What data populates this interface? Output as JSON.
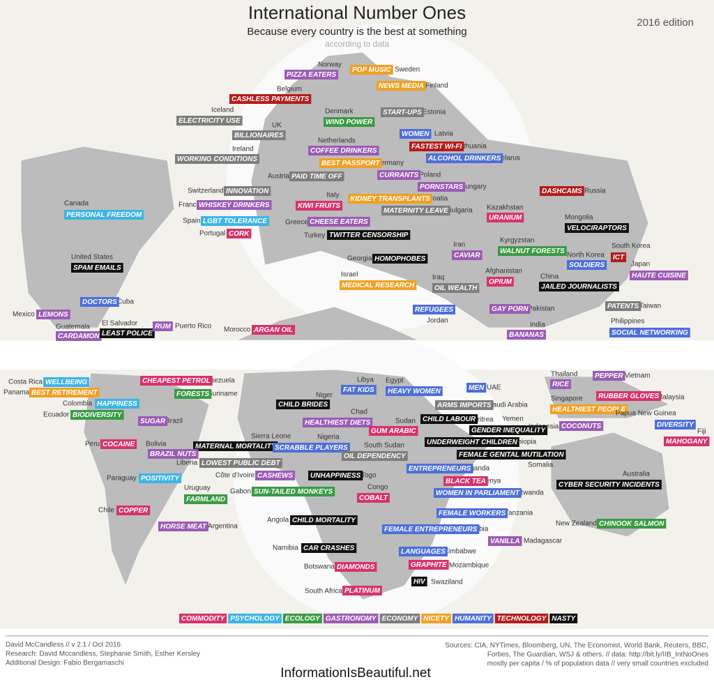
{
  "header": {
    "title": "International Number Ones",
    "subtitle": "Because every country is the best at something",
    "note": "according to data",
    "edition": "2016 edition"
  },
  "labels": [
    {
      "country": "Norway",
      "tag": "PIZZA EATERS",
      "category": "GASTRONOMY"
    },
    {
      "country": "Sweden",
      "tag": "POP MUSIC",
      "category": "NICETY"
    },
    {
      "country": "Finland",
      "tag": "NEWS MEDIA",
      "category": "NICETY"
    },
    {
      "country": "Belgium",
      "tag": "CASHLESS PAYMENTS",
      "category": "TECHNOLOGY"
    },
    {
      "country": "Iceland",
      "tag": "ELECTRICITY USE",
      "category": "ECONOMY"
    },
    {
      "country": "Denmark",
      "tag": "WIND POWER",
      "category": "ECOLOGY"
    },
    {
      "country": "Estonia",
      "tag": "START-UPS",
      "category": "ECONOMY"
    },
    {
      "country": "UK",
      "tag": "BILLIONAIRES",
      "category": "ECONOMY"
    },
    {
      "country": "Latvia",
      "tag": "WOMEN",
      "category": "HUMANITY"
    },
    {
      "country": "Netherlands",
      "tag": "COFFEE DRINKERS",
      "category": "GASTRONOMY"
    },
    {
      "country": "Lithuania",
      "tag": "FASTEST WI-FI",
      "category": "TECHNOLOGY"
    },
    {
      "country": "Ireland",
      "tag": "WORKING CONDITIONS",
      "category": "ECONOMY"
    },
    {
      "country": "Belarus",
      "tag": "ALCOHOL DRINKERS",
      "category": "HUMANITY"
    },
    {
      "country": "Germany",
      "tag": "BEST PASSPORT",
      "category": "NICETY"
    },
    {
      "country": "Austria",
      "tag": "PAID TIME OFF",
      "category": "ECONOMY"
    },
    {
      "country": "Poland",
      "tag": "CURRANTS",
      "category": "GASTRONOMY"
    },
    {
      "country": "Hungary",
      "tag": "PORNSTARS",
      "category": "GASTRONOMY"
    },
    {
      "country": "Switzerland",
      "tag": "INNOVATION",
      "category": "ECONOMY"
    },
    {
      "country": "Russia",
      "tag": "DASHCAMS",
      "category": "TECHNOLOGY"
    },
    {
      "country": "Croatia",
      "tag": "KIDNEY TRANSPLANTS",
      "category": "NICETY"
    },
    {
      "country": "Canada",
      "tag": "PERSONAL FREEDOM",
      "category": "PSYCHOLOGY"
    },
    {
      "country": "France",
      "tag": "WHISKEY DRINKERS",
      "category": "GASTRONOMY"
    },
    {
      "country": "Italy",
      "tag": "KIWI FRUITS",
      "category": "COMMODITY"
    },
    {
      "country": "Kazakhstan",
      "tag": "URANIUM",
      "category": "COMMODITY"
    },
    {
      "country": "Bulgaria",
      "tag": "MATERNITY LEAVE",
      "category": "ECONOMY"
    },
    {
      "country": "Spain",
      "tag": "LGBT TOLERANCE",
      "category": "PSYCHOLOGY"
    },
    {
      "country": "Greece",
      "tag": "CHEESE EATERS",
      "category": "GASTRONOMY"
    },
    {
      "country": "Mongolia",
      "tag": "VELOCIRAPTORS",
      "category": "NASTY"
    },
    {
      "country": "Portugal",
      "tag": "CORK",
      "category": "COMMODITY"
    },
    {
      "country": "Turkey",
      "tag": "TWITTER CENSORSHIP",
      "category": "NASTY"
    },
    {
      "country": "Iran",
      "tag": "CAVIAR",
      "category": "GASTRONOMY"
    },
    {
      "country": "Kyrgyzstan",
      "tag": "WALNUT FORESTS",
      "category": "ECOLOGY"
    },
    {
      "country": "South Korea",
      "tag": "ICT",
      "category": "TECHNOLOGY"
    },
    {
      "country": "North Korea",
      "tag": "SOLDIERS",
      "category": "HUMANITY"
    },
    {
      "country": "United States",
      "tag": "SPAM EMAILS",
      "category": "NASTY"
    },
    {
      "country": "Georgia",
      "tag": "HOMOPHOBES",
      "category": "NASTY"
    },
    {
      "country": "Japan",
      "tag": "HAUTE CUISINE",
      "category": "GASTRONOMY"
    },
    {
      "country": "Afghanistan",
      "tag": "OPIUM",
      "category": "COMMODITY"
    },
    {
      "country": "Israel",
      "tag": "MEDICAL RESEARCH",
      "category": "NICETY"
    },
    {
      "country": "China",
      "tag": "JAILED JOURNALISTS",
      "category": "NASTY"
    },
    {
      "country": "Iraq",
      "tag": "OIL WEALTH",
      "category": "ECONOMY"
    },
    {
      "country": "Cuba",
      "tag": "DOCTORS",
      "category": "HUMANITY"
    },
    {
      "country": "Taiwan",
      "tag": "PATENTS",
      "category": "ECONOMY"
    },
    {
      "country": "Jordan",
      "tag": "REFUGEES",
      "category": "HUMANITY"
    },
    {
      "country": "Pakistan",
      "tag": "GAY PORN",
      "category": "GASTRONOMY"
    },
    {
      "country": "Mexico",
      "tag": "LEMONS",
      "category": "GASTRONOMY"
    },
    {
      "country": "Philippines",
      "tag": "SOCIAL NETWORKING",
      "category": "HUMANITY"
    },
    {
      "country": "Guatemala",
      "tag": "CARDAMON",
      "category": "GASTRONOMY"
    },
    {
      "country": "El Salvador",
      "tag": "LEAST POLICE",
      "category": "NASTY"
    },
    {
      "country": "Puerto Rico",
      "tag": "RUM",
      "category": "GASTRONOMY"
    },
    {
      "country": "Morocco",
      "tag": "ARGAN OIL",
      "category": "COMMODITY"
    },
    {
      "country": "India",
      "tag": "BANANAS",
      "category": "GASTRONOMY"
    },
    {
      "country": "Venezuela",
      "tag": "CHEAPEST PETROL",
      "category": "COMMODITY"
    },
    {
      "country": "Costa Rica",
      "tag": "WELLBEING",
      "category": "PSYCHOLOGY"
    },
    {
      "country": "Libya",
      "tag": "FAT KIDS",
      "category": "HUMANITY"
    },
    {
      "country": "Egypt",
      "tag": "HEAVY WOMEN",
      "category": "HUMANITY"
    },
    {
      "country": "UAE",
      "tag": "MEN",
      "category": "HUMANITY"
    },
    {
      "country": "Thailand",
      "tag": "RICE",
      "category": "GASTRONOMY"
    },
    {
      "country": "Vietnam",
      "tag": "PEPPER",
      "category": "GASTRONOMY"
    },
    {
      "country": "Panama",
      "tag": "BEST RETIREMENT",
      "category": "NICETY"
    },
    {
      "country": "Suriname",
      "tag": "FORESTS",
      "category": "ECOLOGY"
    },
    {
      "country": "Niger",
      "tag": "CHILD BRIDES",
      "category": "NASTY"
    },
    {
      "country": "Malaysia",
      "tag": "RUBBER GLOVES",
      "category": "COMMODITY"
    },
    {
      "country": "Singapore",
      "tag": "HEALTHIEST PEOPLE",
      "category": "NICETY"
    },
    {
      "country": "Colombia",
      "tag": "HAPPINESS",
      "category": "PSYCHOLOGY"
    },
    {
      "country": "Saudi Arabia",
      "tag": "ARMS IMPORTS",
      "category": "ECONOMY"
    },
    {
      "country": "Chad",
      "tag": "HEALTHIEST DIETS",
      "category": "GASTRONOMY"
    },
    {
      "country": "Ecuador",
      "tag": "BIODIVERSITY",
      "category": "ECOLOGY"
    },
    {
      "country": "Papua New Guinea",
      "tag": "DIVERSITY",
      "category": "HUMANITY"
    },
    {
      "country": "Eritrea",
      "tag": "CHILD LABOUR",
      "category": "NASTY"
    },
    {
      "country": "Yemen",
      "tag": "GENDER INEQUALITY",
      "category": "NASTY"
    },
    {
      "country": "Sudan",
      "tag": "GUM ARABIC",
      "category": "COMMODITY"
    },
    {
      "country": "Brazil",
      "tag": "SUGAR",
      "category": "GASTRONOMY"
    },
    {
      "country": "Indonesia",
      "tag": "COCONUTS",
      "category": "GASTRONOMY"
    },
    {
      "country": "Fiji",
      "tag": "MAHOGANY",
      "category": "COMMODITY"
    },
    {
      "country": "Sierra Leone",
      "tag": "MATERNAL MORTALITY",
      "category": "NASTY"
    },
    {
      "country": "Nigeria",
      "tag": "SCRABBLE PLAYERS",
      "category": "HUMANITY"
    },
    {
      "country": "Ethiopia",
      "tag": "UNDERWEIGHT CHILDREN",
      "category": "NASTY"
    },
    {
      "country": "Peru",
      "tag": "COCAINE",
      "category": "COMMODITY"
    },
    {
      "country": "Bolivia",
      "tag": "BRAZIL NUTS",
      "category": "GASTRONOMY"
    },
    {
      "country": "South Sudan",
      "tag": "OIL DEPENDENCY",
      "category": "ECONOMY"
    },
    {
      "country": "Somalia",
      "tag": "FEMALE GENITAL MUTILATION",
      "category": "NASTY"
    },
    {
      "country": "Liberia",
      "tag": "LOWEST PUBLIC DEBT",
      "category": "ECONOMY"
    },
    {
      "country": "Uganda",
      "tag": "ENTREPRENEURS",
      "category": "HUMANITY"
    },
    {
      "country": "Côte d’Ivoire",
      "tag": "CASHEWS",
      "category": "GASTRONOMY"
    },
    {
      "country": "Togo",
      "tag": "UNHAPPINESS",
      "category": "NASTY"
    },
    {
      "country": "Paraguay",
      "tag": "POSITIVITY",
      "category": "PSYCHOLOGY"
    },
    {
      "country": "Kenya",
      "tag": "BLACK TEA",
      "category": "COMMODITY"
    },
    {
      "country": "Uruguay",
      "tag": "FARMLAND",
      "category": "ECOLOGY"
    },
    {
      "country": "Australia",
      "tag": "CYBER SECURITY INCIDENTS",
      "category": "NASTY"
    },
    {
      "country": "Congo",
      "tag": "COBALT",
      "category": "COMMODITY"
    },
    {
      "country": "Gabon",
      "tag": "SUN-TAILED MONKEYS",
      "category": "ECOLOGY"
    },
    {
      "country": "Rwanda",
      "tag": "WOMEN IN PARLIAMENT",
      "category": "HUMANITY"
    },
    {
      "country": "Chile",
      "tag": "COPPER",
      "category": "COMMODITY"
    },
    {
      "country": "Tanzania",
      "tag": "FEMALE WORKERS",
      "category": "HUMANITY"
    },
    {
      "country": "Angola",
      "tag": "CHILD MORTALITY",
      "category": "NASTY"
    },
    {
      "country": "New Zealand",
      "tag": "CHINOOK SALMON",
      "category": "ECOLOGY"
    },
    {
      "country": "Argentina",
      "tag": "HORSE MEAT",
      "category": "GASTRONOMY"
    },
    {
      "country": "Zambia",
      "tag": "FEMALE ENTREPRENEURS",
      "category": "HUMANITY"
    },
    {
      "country": "Madagascar",
      "tag": "VANILLA",
      "category": "GASTRONOMY"
    },
    {
      "country": "Namibia",
      "tag": "CAR CRASHES",
      "category": "NASTY"
    },
    {
      "country": "Zimbabwe",
      "tag": "LANGUAGES",
      "category": "HUMANITY"
    },
    {
      "country": "Botswana",
      "tag": "DIAMONDS",
      "category": "COMMODITY"
    },
    {
      "country": "Mozambique",
      "tag": "GRAPHITE",
      "category": "COMMODITY"
    },
    {
      "country": "Swaziland",
      "tag": "HIV",
      "category": "NASTY"
    },
    {
      "country": "South Africa",
      "tag": "PLATINUM",
      "category": "COMMODITY"
    }
  ],
  "legend": [
    {
      "label": "COMMODITY",
      "color": "#d6336c"
    },
    {
      "label": "PSYCHOLOGY",
      "color": "#3cb4e6"
    },
    {
      "label": "ECOLOGY",
      "color": "#3a9a44"
    },
    {
      "label": "GASTRONOMY",
      "color": "#9b5bb5"
    },
    {
      "label": "ECONOMY",
      "color": "#7d7d7d"
    },
    {
      "label": "NICETY",
      "color": "#f0a024"
    },
    {
      "label": "HUMANITY",
      "color": "#4d6fd8"
    },
    {
      "label": "TECHNOLOGY",
      "color": "#b31c1c"
    },
    {
      "label": "NASTY",
      "color": "#111111"
    }
  ],
  "footer": {
    "credits": [
      "David McCandless // v 2.1 / Oct 2016",
      "Research: David Mccandless, Stephanie Smith, Esther Kersley",
      "Additional Design: Fabio Bergamaschi"
    ],
    "sources": [
      "Sources: CIA, NYTimes, Bloomberg, UN, The Economist, World Bank, Reuters, BBC,",
      "Forbes, The Guardian, WSJ & others. // data: http://bit.ly/IIB_IntNoOnes",
      "mostly per capita / % of population data // very small countries excluded"
    ],
    "brand": "InformationIsBeautiful.net"
  }
}
